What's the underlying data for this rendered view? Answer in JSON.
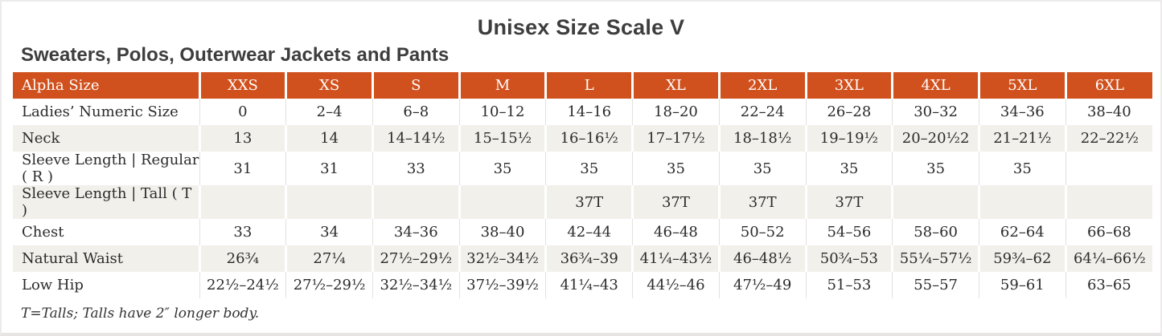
{
  "page": {
    "title": "Unisex Size Scale V",
    "subtitle": "Sweaters, Polos, Outerwear Jackets and Pants",
    "footnote": "T=Talls; Talls have 2″ longer body."
  },
  "colors": {
    "header_bg": "#d0511d",
    "header_text": "#ffffff",
    "stripe_bg": "#f1f0eb",
    "title_text": "#3d3d3d",
    "body_text": "#2b2b2b"
  },
  "table": {
    "header": [
      "Alpha Size",
      "XXS",
      "XS",
      "S",
      "M",
      "L",
      "XL",
      "2XL",
      "3XL",
      "4XL",
      "5XL",
      "6XL"
    ],
    "rows": [
      {
        "label": "Ladies’ Numeric Size",
        "values": [
          "0",
          "2–4",
          "6–8",
          "10–12",
          "14–16",
          "18–20",
          "22–24",
          "26–28",
          "30–32",
          "34–36",
          "38–40"
        ]
      },
      {
        "label": "Neck",
        "values": [
          "13",
          "14",
          "14–14½",
          "15–15½",
          "16–16½",
          "17–17½",
          "18–18½",
          "19–19½",
          "20–20½2",
          "21–21½",
          "22–22½"
        ]
      },
      {
        "label": "Sleeve Length | Regular ( R )",
        "values": [
          "31",
          "31",
          "33",
          "35",
          "35",
          "35",
          "35",
          "35",
          "35",
          "35",
          ""
        ]
      },
      {
        "label": "Sleeve Length | Tall ( T )",
        "values": [
          "",
          "",
          "",
          "",
          "37T",
          "37T",
          "37T",
          "37T",
          "",
          "",
          ""
        ]
      },
      {
        "label": "Chest",
        "values": [
          "33",
          "34",
          "34–36",
          "38–40",
          "42–44",
          "46–48",
          "50–52",
          "54–56",
          "58–60",
          "62–64",
          "66–68"
        ]
      },
      {
        "label": "Natural Waist",
        "values": [
          "26¾",
          "27¼",
          "27½–29½",
          "32½–34½",
          "36¾–39",
          "41¼–43½",
          "46–48½",
          "50¾–53",
          "55¼–57½",
          "59¾–62",
          "64¼–66½"
        ]
      },
      {
        "label": "Low Hip",
        "values": [
          "22½–24½",
          "27½–29½",
          "32½–34½",
          "37½–39½",
          "41¼–43",
          "44½–46",
          "47½–49",
          "51–53",
          "55–57",
          "59–61",
          "63–65"
        ]
      }
    ]
  }
}
